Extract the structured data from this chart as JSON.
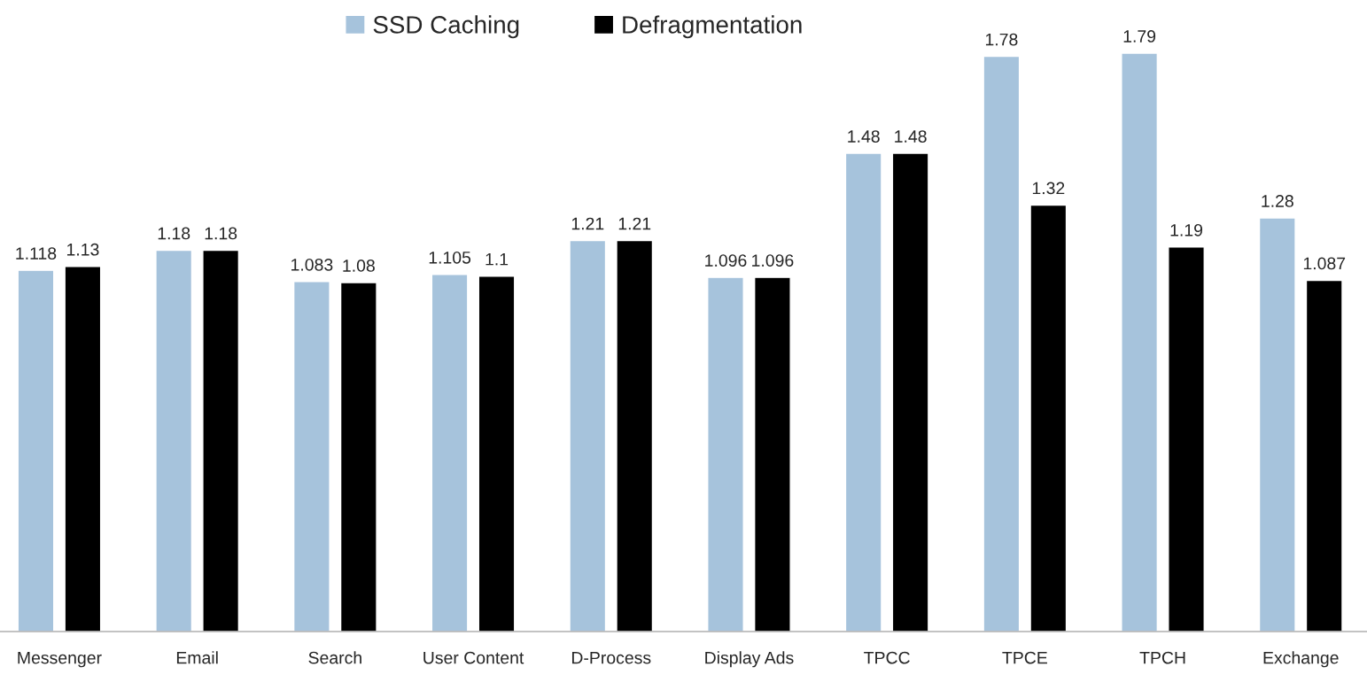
{
  "chart_data": {
    "type": "bar",
    "categories": [
      "Messenger",
      "Email",
      "Search",
      "User Content",
      "D-Process",
      "Display Ads",
      "TPCC",
      "TPCE",
      "TPCH",
      "Exchange"
    ],
    "series": [
      {
        "name": "SSD Caching",
        "color": "#a6c3dc",
        "values": [
          1.118,
          1.18,
          1.083,
          1.105,
          1.21,
          1.096,
          1.48,
          1.78,
          1.79,
          1.28
        ]
      },
      {
        "name": "Defragmentation",
        "color": "#000000",
        "values": [
          1.13,
          1.18,
          1.08,
          1.1,
          1.21,
          1.096,
          1.48,
          1.32,
          1.19,
          1.087
        ]
      }
    ],
    "data_labels": true,
    "legend": "top",
    "grid": false
  }
}
